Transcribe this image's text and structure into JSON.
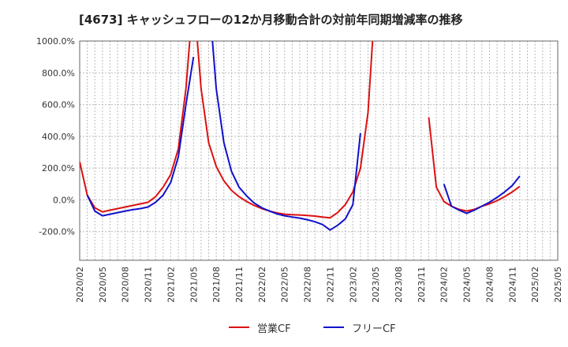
{
  "chart_data": {
    "type": "line",
    "title": "[4673]  キャッシュフローの12か月移動合計の対前年同期増減率の推移",
    "xlabel": "",
    "ylabel": "",
    "x_tick_labels": [
      "2020/02",
      "2020/05",
      "2020/08",
      "2020/11",
      "2021/02",
      "2021/05",
      "2021/08",
      "2021/11",
      "2022/02",
      "2022/05",
      "2022/08",
      "2022/11",
      "2023/02",
      "2023/05",
      "2023/08",
      "2023/11",
      "2024/02",
      "2024/05",
      "2024/08",
      "2024/11",
      "2025/02",
      "2025/05"
    ],
    "y_tick_labels": [
      "-200.0%",
      "0.0%",
      "200.0%",
      "400.0%",
      "600.0%",
      "800.0%",
      "1000.0%"
    ],
    "y_ticks": [
      -200,
      0,
      200,
      400,
      600,
      800,
      1000
    ],
    "ylim": [
      -380,
      1000
    ],
    "x_range": [
      "2020/02",
      "2025/05"
    ],
    "grid": true,
    "legend_position": "bottom",
    "series": [
      {
        "name": "営業CF",
        "color": "#dd1111",
        "points": [
          [
            "2020/02",
            240
          ],
          [
            "2020/03",
            30
          ],
          [
            "2020/04",
            -50
          ],
          [
            "2020/05",
            -75
          ],
          [
            "2020/06",
            -65
          ],
          [
            "2020/07",
            -55
          ],
          [
            "2020/08",
            -45
          ],
          [
            "2020/09",
            -35
          ],
          [
            "2020/10",
            -25
          ],
          [
            "2020/11",
            -15
          ],
          [
            "2020/12",
            20
          ],
          [
            "2021/01",
            80
          ],
          [
            "2021/02",
            160
          ],
          [
            "2021/03",
            320
          ],
          [
            "2021/04",
            700
          ],
          [
            "2021/05",
            1300
          ],
          [
            "2021/06",
            700
          ],
          [
            "2021/07",
            360
          ],
          [
            "2021/08",
            210
          ],
          [
            "2021/09",
            120
          ],
          [
            "2021/10",
            60
          ],
          [
            "2021/11",
            20
          ],
          [
            "2021/12",
            -10
          ],
          [
            "2022/01",
            -35
          ],
          [
            "2022/02",
            -55
          ],
          [
            "2022/03",
            -70
          ],
          [
            "2022/04",
            -82
          ],
          [
            "2022/05",
            -90
          ],
          [
            "2022/06",
            -93
          ],
          [
            "2022/07",
            -95
          ],
          [
            "2022/08",
            -98
          ],
          [
            "2022/09",
            -102
          ],
          [
            "2022/10",
            -108
          ],
          [
            "2022/11",
            -113
          ],
          [
            "2022/12",
            -80
          ],
          [
            "2023/01",
            -30
          ],
          [
            "2023/02",
            50
          ],
          [
            "2023/03",
            200
          ],
          [
            "2023/04",
            550
          ],
          [
            "2023/05",
            1300
          ],
          null,
          [
            "2023/12",
            520
          ],
          [
            "2024/01",
            80
          ],
          [
            "2024/02",
            -10
          ],
          [
            "2024/03",
            -40
          ],
          [
            "2024/04",
            -60
          ],
          [
            "2024/05",
            -70
          ],
          [
            "2024/06",
            -60
          ],
          [
            "2024/07",
            -40
          ],
          [
            "2024/08",
            -25
          ],
          [
            "2024/09",
            -5
          ],
          [
            "2024/10",
            20
          ],
          [
            "2024/11",
            50
          ],
          [
            "2024/12",
            85
          ]
        ]
      },
      {
        "name": "フリーCF",
        "color": "#1111cc",
        "points": [
          [
            "2020/03",
            30
          ],
          [
            "2020/04",
            -70
          ],
          [
            "2020/05",
            -100
          ],
          [
            "2020/06",
            -90
          ],
          [
            "2020/07",
            -80
          ],
          [
            "2020/08",
            -70
          ],
          [
            "2020/09",
            -62
          ],
          [
            "2020/10",
            -55
          ],
          [
            "2020/11",
            -45
          ],
          [
            "2020/12",
            -15
          ],
          [
            "2021/01",
            30
          ],
          [
            "2021/02",
            110
          ],
          [
            "2021/03",
            270
          ],
          [
            "2021/04",
            600
          ],
          [
            "2021/05",
            900
          ],
          null,
          [
            "2021/07",
            1300
          ],
          [
            "2021/08",
            700
          ],
          [
            "2021/09",
            360
          ],
          [
            "2021/10",
            180
          ],
          [
            "2021/11",
            80
          ],
          [
            "2021/12",
            25
          ],
          [
            "2022/01",
            -20
          ],
          [
            "2022/02",
            -50
          ],
          [
            "2022/03",
            -70
          ],
          [
            "2022/04",
            -88
          ],
          [
            "2022/05",
            -100
          ],
          [
            "2022/06",
            -108
          ],
          [
            "2022/07",
            -115
          ],
          [
            "2022/08",
            -125
          ],
          [
            "2022/09",
            -138
          ],
          [
            "2022/10",
            -155
          ],
          [
            "2022/11",
            -190
          ],
          [
            "2022/12",
            -160
          ],
          [
            "2023/01",
            -120
          ],
          [
            "2023/02",
            -30
          ],
          [
            "2023/03",
            420
          ],
          null,
          [
            "2024/02",
            100
          ],
          [
            "2024/03",
            -40
          ],
          [
            "2024/04",
            -65
          ],
          [
            "2024/05",
            -85
          ],
          [
            "2024/06",
            -65
          ],
          [
            "2024/07",
            -40
          ],
          [
            "2024/08",
            -15
          ],
          [
            "2024/09",
            15
          ],
          [
            "2024/10",
            50
          ],
          [
            "2024/11",
            90
          ],
          [
            "2024/12",
            150
          ]
        ]
      }
    ]
  }
}
